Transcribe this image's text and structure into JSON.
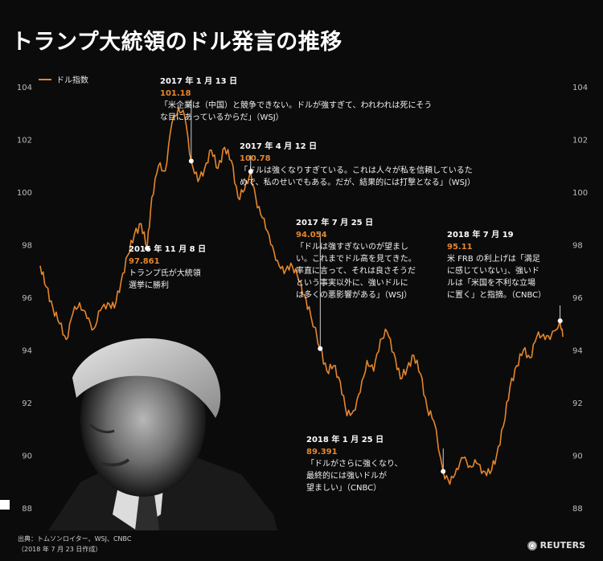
{
  "title": "トランプ大統領のドル発言の推移",
  "footer": {
    "source": "出典：トムソンロイター、WSJ、CNBC",
    "date_note": "（2018 年 7 月 23 日作成）",
    "brand": "REUTERS"
  },
  "annotations": {
    "a1": {
      "date": "2016 年 11 月 8 日",
      "value": "97.861",
      "text": [
        "トランプ氏が大統領",
        "選挙に勝利"
      ]
    },
    "a2": {
      "date": "2017 年 1 月 13 日",
      "value": "101.18",
      "text": [
        "「米企業は（中国）と競争できない。ドルが強すぎて、われわれは死にそう",
        "な目にあっているからだ」（WSJ）"
      ]
    },
    "a3": {
      "date": "2017 年 4 月 12 日",
      "value": "100.78",
      "text": [
        "「ドルは強くなりすぎている。これは人々が私を信頼しているた",
        "めで、私のせいでもある。だが、結果的には打撃となる」（WSJ）"
      ]
    },
    "a4": {
      "date": "2017 年 7 月 25 日",
      "value": "94.054",
      "text": [
        "「ドルは強すぎないのが望まし",
        "い。これまでドル高を見てきた。",
        "率直に言って、それは良さそうだ",
        "という事実以外に、強いドルに",
        "は多くの悪影響がある」（WSJ）"
      ]
    },
    "a5": {
      "date": "2018 年 1 月 25 日",
      "value": "89.391",
      "text": [
        "「ドルがさらに強くなり、",
        "最終的には強いドルが",
        "望ましい」（CNBC）"
      ]
    },
    "a6": {
      "date": "2018 年 7 月 19",
      "value": "95.11",
      "text": [
        "米 FRB の利上げは「満足",
        "に感じていない」、強いド",
        "ルは「米国を不利な立場",
        "に置く」と指摘。（CNBC）"
      ]
    }
  },
  "chart_data": {
    "type": "line",
    "series": [
      {
        "name": "ドル指数",
        "color": "#e5862b",
        "x": [
          "2016-06-01",
          "2016-06-10",
          "2016-06-20",
          "2016-06-30",
          "2016-07-10",
          "2016-07-20",
          "2016-07-30",
          "2016-08-10",
          "2016-08-20",
          "2016-08-30",
          "2016-09-10",
          "2016-09-20",
          "2016-09-30",
          "2016-10-10",
          "2016-10-20",
          "2016-10-30",
          "2016-11-08",
          "2016-11-15",
          "2016-11-25",
          "2016-12-05",
          "2016-12-15",
          "2016-12-25",
          "2017-01-03",
          "2017-01-13",
          "2017-01-23",
          "2017-02-02",
          "2017-02-12",
          "2017-02-22",
          "2017-03-04",
          "2017-03-14",
          "2017-03-24",
          "2017-04-03",
          "2017-04-12",
          "2017-04-22",
          "2017-05-02",
          "2017-05-12",
          "2017-05-22",
          "2017-06-01",
          "2017-06-11",
          "2017-06-21",
          "2017-07-01",
          "2017-07-11",
          "2017-07-25",
          "2017-08-04",
          "2017-08-14",
          "2017-08-24",
          "2017-09-03",
          "2017-09-13",
          "2017-09-23",
          "2017-10-03",
          "2017-10-13",
          "2017-10-23",
          "2017-11-02",
          "2017-11-12",
          "2017-11-22",
          "2017-12-02",
          "2017-12-12",
          "2017-12-22",
          "2018-01-01",
          "2018-01-11",
          "2018-01-25",
          "2018-02-04",
          "2018-02-14",
          "2018-02-24",
          "2018-03-06",
          "2018-03-16",
          "2018-03-26",
          "2018-04-05",
          "2018-04-15",
          "2018-04-25",
          "2018-05-05",
          "2018-05-15",
          "2018-05-25",
          "2018-06-04",
          "2018-06-14",
          "2018-06-24",
          "2018-07-04",
          "2018-07-19",
          "2018-07-23"
        ],
        "values": [
          97.2,
          96.4,
          95.6,
          95.0,
          94.4,
          95.4,
          95.8,
          95.2,
          94.8,
          95.5,
          95.8,
          95.6,
          96.6,
          97.6,
          98.4,
          98.8,
          97.861,
          99.8,
          101.0,
          100.8,
          102.6,
          103.2,
          102.9,
          101.18,
          100.4,
          100.9,
          101.6,
          100.9,
          101.7,
          101.2,
          99.8,
          100.1,
          100.78,
          99.4,
          99.0,
          98.0,
          97.4,
          96.9,
          97.3,
          96.8,
          96.1,
          95.3,
          94.054,
          93.2,
          93.4,
          92.8,
          91.5,
          91.7,
          92.4,
          93.6,
          93.2,
          94.4,
          94.7,
          93.9,
          92.9,
          93.3,
          93.8,
          93.1,
          91.8,
          91.3,
          89.391,
          88.9,
          89.5,
          89.9,
          89.6,
          89.7,
          89.4,
          89.3,
          90.0,
          91.1,
          92.6,
          93.4,
          94.0,
          93.7,
          94.5,
          94.6,
          94.4,
          95.11,
          94.5
        ]
      }
    ],
    "ylim": [
      88,
      104
    ],
    "yticks": [
      "88",
      "90",
      "92",
      "94",
      "96",
      "98",
      "100",
      "102",
      "104"
    ],
    "grid": false,
    "legend": "top-left",
    "xlabel": "",
    "ylabel": ""
  }
}
